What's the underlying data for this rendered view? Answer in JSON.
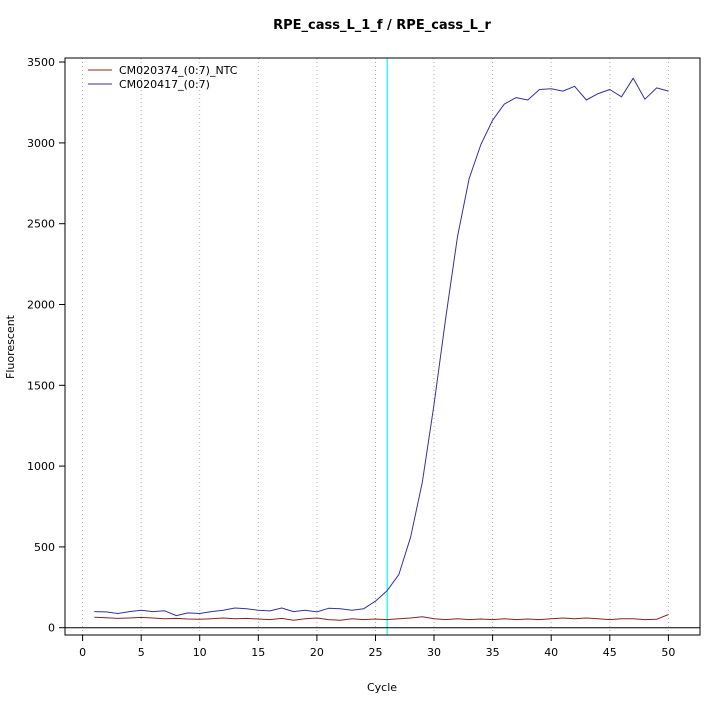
{
  "chart_data": {
    "type": "line",
    "title": "RPE_cass_L_1_f / RPE_cass_L_r",
    "xlabel": "Cycle",
    "ylabel": "Fluorescent",
    "xlim": [
      -1.5,
      52.7
    ],
    "ylim": [
      -45,
      3525
    ],
    "x_ticks": [
      0,
      5,
      10,
      15,
      20,
      25,
      30,
      35,
      40,
      45,
      50
    ],
    "y_ticks": [
      0,
      500,
      1000,
      1500,
      2000,
      2500,
      3000,
      3500
    ],
    "grid": "vertical-dotted",
    "grid_color": "#aaaaaa",
    "legend_position": "top-left",
    "threshold_line": {
      "x": 26,
      "color": "#00ffff"
    },
    "zero_line": {
      "y": 0,
      "color": "#000000"
    },
    "x": [
      1,
      2,
      3,
      4,
      5,
      6,
      7,
      8,
      9,
      10,
      11,
      12,
      13,
      14,
      15,
      16,
      17,
      18,
      19,
      20,
      21,
      22,
      23,
      24,
      25,
      26,
      27,
      28,
      29,
      30,
      31,
      32,
      33,
      34,
      35,
      36,
      37,
      38,
      39,
      40,
      41,
      42,
      43,
      44,
      45,
      46,
      47,
      48,
      49,
      50
    ],
    "series": [
      {
        "name": "CM020374_(0:7)_NTC",
        "color": "#8b2323",
        "values": [
          65,
          62,
          58,
          60,
          64,
          60,
          55,
          58,
          54,
          52,
          56,
          60,
          55,
          58,
          54,
          50,
          58,
          46,
          55,
          60,
          50,
          46,
          55,
          50,
          54,
          50,
          55,
          60,
          68,
          55,
          50,
          55,
          50,
          54,
          50,
          55,
          50,
          54,
          50,
          55,
          60,
          55,
          60,
          55,
          50,
          55,
          56,
          50,
          52,
          82
        ]
      },
      {
        "name": "CM020417_(0:7)",
        "color": "#3333a0",
        "values": [
          100,
          98,
          88,
          100,
          108,
          100,
          105,
          75,
          92,
          88,
          100,
          108,
          122,
          118,
          108,
          104,
          122,
          100,
          108,
          98,
          120,
          118,
          108,
          118,
          165,
          230,
          330,
          560,
          900,
          1380,
          1920,
          2420,
          2780,
          2990,
          3140,
          3240,
          3280,
          3265,
          3330,
          3335,
          3320,
          3350,
          3265,
          3305,
          3330,
          3285,
          3400,
          3270,
          3340,
          3320
        ]
      }
    ]
  }
}
